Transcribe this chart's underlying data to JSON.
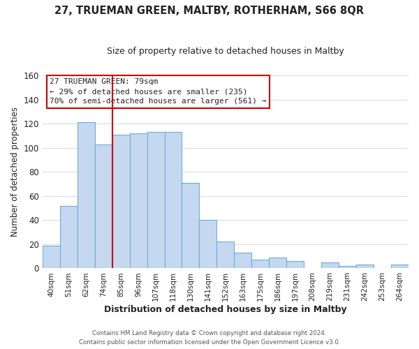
{
  "title": "27, TRUEMAN GREEN, MALTBY, ROTHERHAM, S66 8QR",
  "subtitle": "Size of property relative to detached houses in Maltby",
  "xlabel": "Distribution of detached houses by size in Maltby",
  "ylabel": "Number of detached properties",
  "categories": [
    "40sqm",
    "51sqm",
    "62sqm",
    "74sqm",
    "85sqm",
    "96sqm",
    "107sqm",
    "118sqm",
    "130sqm",
    "141sqm",
    "152sqm",
    "163sqm",
    "175sqm",
    "186sqm",
    "197sqm",
    "208sqm",
    "219sqm",
    "231sqm",
    "242sqm",
    "253sqm",
    "264sqm"
  ],
  "values": [
    19,
    52,
    121,
    103,
    111,
    112,
    113,
    113,
    71,
    40,
    22,
    13,
    7,
    9,
    6,
    0,
    5,
    2,
    3,
    0,
    3
  ],
  "bar_color": "#c5d8f0",
  "bar_edge_color": "#6aaed6",
  "vline_x": 3.5,
  "vline_color": "#cc0000",
  "annotation_title": "27 TRUEMAN GREEN: 79sqm",
  "annotation_line1": "← 29% of detached houses are smaller (235)",
  "annotation_line2": "70% of semi-detached houses are larger (561) →",
  "annotation_box_edge": "#cc0000",
  "ylim": [
    0,
    160
  ],
  "yticks": [
    0,
    20,
    40,
    60,
    80,
    100,
    120,
    140,
    160
  ],
  "footer_line1": "Contains HM Land Registry data © Crown copyright and database right 2024.",
  "footer_line2": "Contains public sector information licensed under the Open Government Licence v3.0.",
  "background_color": "#ffffff",
  "grid_color": "#d0dce8"
}
